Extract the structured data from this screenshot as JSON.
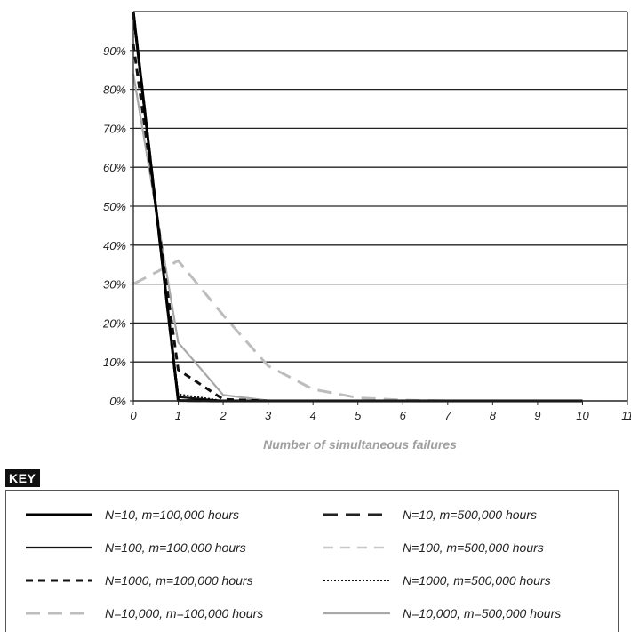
{
  "chart_data": {
    "type": "line",
    "xlabel": "Number of simultaneous failures",
    "ylabel": "",
    "xlim": [
      0,
      11
    ],
    "ylim": [
      0,
      100
    ],
    "x_ticks": [
      "0",
      "1",
      "2",
      "3",
      "4",
      "5",
      "6",
      "7",
      "8",
      "9",
      "10",
      "11"
    ],
    "y_ticks": [
      "0%",
      "10%",
      "20%",
      "30%",
      "40%",
      "50%",
      "60%",
      "70%",
      "80%",
      "90%"
    ],
    "grid": "horizontal",
    "legend_title": "KEY",
    "legend_placement": "bottom",
    "series": [
      {
        "name": "N=10, m=100,000 hours",
        "color": "#000000",
        "style": "solid-thick",
        "x": [
          0,
          1,
          2,
          3,
          4,
          5,
          6,
          7,
          8,
          9,
          10
        ],
        "y": [
          99.9,
          0.1,
          0,
          0,
          0,
          0,
          0,
          0,
          0,
          0,
          0
        ]
      },
      {
        "name": "N=10, m=500,000 hours",
        "color": "#222222",
        "style": "long-dash",
        "x": [
          0,
          1,
          2,
          3,
          4,
          5,
          6,
          7,
          8,
          9,
          10
        ],
        "y": [
          99.9,
          0.1,
          0,
          0,
          0,
          0,
          0,
          0,
          0,
          0,
          0
        ]
      },
      {
        "name": "N=100, m=100,000 hours",
        "color": "#111111",
        "style": "solid",
        "x": [
          0,
          1,
          2,
          3,
          4,
          5,
          6,
          7,
          8,
          9,
          10
        ],
        "y": [
          99,
          1,
          0,
          0,
          0,
          0,
          0,
          0,
          0,
          0,
          0
        ]
      },
      {
        "name": "N=100, m=500,000 hours",
        "color": "#c8c8c8",
        "style": "dash",
        "x": [
          0,
          1,
          2,
          3,
          4,
          5,
          6,
          7,
          8,
          9,
          10
        ],
        "y": [
          99.8,
          0.2,
          0,
          0,
          0,
          0,
          0,
          0,
          0,
          0,
          0
        ]
      },
      {
        "name": "N=1000, m=100,000 hours",
        "color": "#111111",
        "style": "short-dash",
        "x": [
          0,
          1,
          2,
          3,
          4,
          5,
          6,
          7,
          8,
          9,
          10
        ],
        "y": [
          91.6,
          8,
          0.4,
          0,
          0,
          0,
          0,
          0,
          0,
          0,
          0
        ]
      },
      {
        "name": "N=1000, m=500,000 hours",
        "color": "#111111",
        "style": "dotted",
        "x": [
          0,
          1,
          2,
          3,
          4,
          5,
          6,
          7,
          8,
          9,
          10
        ],
        "y": [
          98.3,
          1.7,
          0,
          0,
          0,
          0,
          0,
          0,
          0,
          0,
          0
        ]
      },
      {
        "name": "N=10,000, m=100,000 hours",
        "color": "#bdbdbd",
        "style": "long-dash",
        "x": [
          0,
          1,
          2,
          3,
          4,
          5,
          6,
          7,
          8,
          9,
          10
        ],
        "y": [
          30,
          36,
          22,
          9,
          3,
          0.8,
          0.2,
          0,
          0,
          0,
          0
        ]
      },
      {
        "name": "N=10,000, m=500,000 hours",
        "color": "#a8a8a8",
        "style": "solid",
        "x": [
          0,
          1,
          2,
          3,
          4,
          5,
          6,
          7,
          8,
          9,
          10
        ],
        "y": [
          84,
          15,
          1.5,
          0.1,
          0,
          0,
          0,
          0,
          0,
          0,
          0
        ]
      }
    ]
  }
}
